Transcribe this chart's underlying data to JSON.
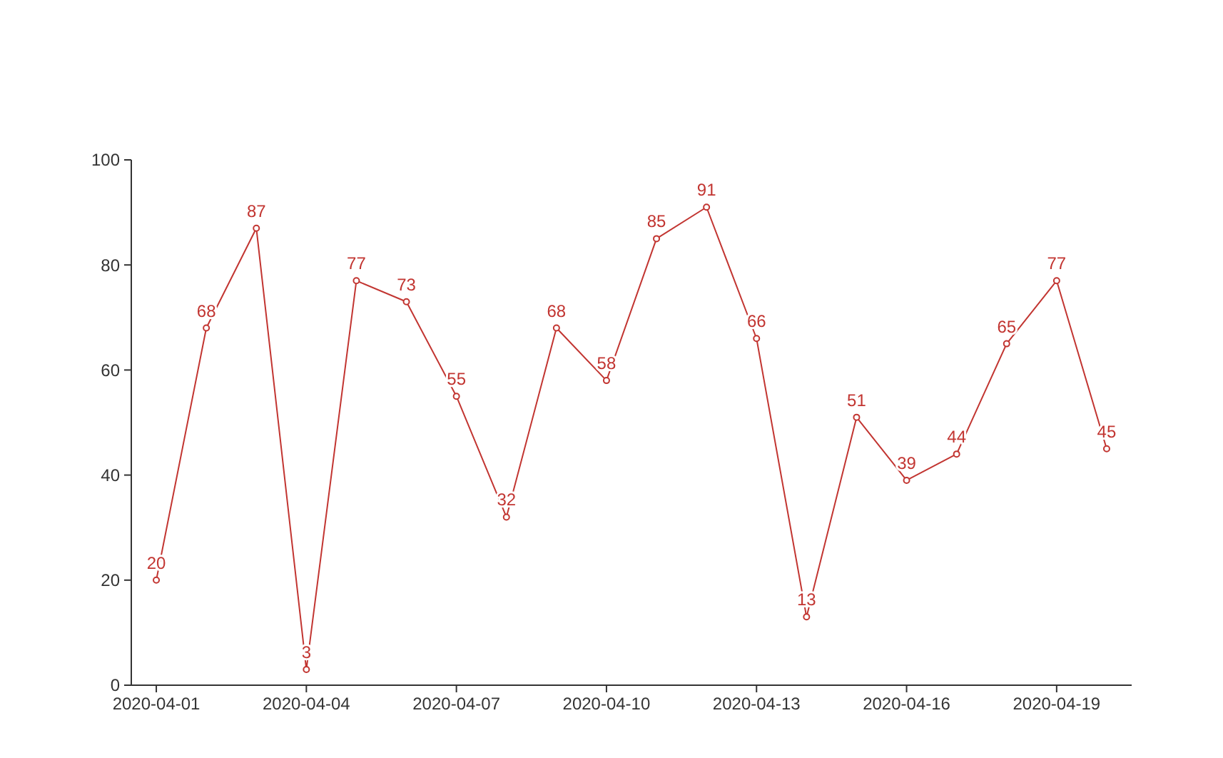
{
  "chart_data": {
    "type": "line",
    "x": [
      "2020-04-01",
      "2020-04-02",
      "2020-04-03",
      "2020-04-04",
      "2020-04-05",
      "2020-04-06",
      "2020-04-07",
      "2020-04-08",
      "2020-04-09",
      "2020-04-10",
      "2020-04-11",
      "2020-04-12",
      "2020-04-13",
      "2020-04-14",
      "2020-04-15",
      "2020-04-16",
      "2020-04-17",
      "2020-04-18",
      "2020-04-19",
      "2020-04-20"
    ],
    "series": [
      {
        "color": "#c23531",
        "values": [
          20,
          68,
          87,
          3,
          77,
          73,
          55,
          32,
          68,
          58,
          85,
          91,
          66,
          13,
          51,
          39,
          44,
          65,
          77,
          45
        ]
      }
    ],
    "xlim": [
      "2020-03-31T12:00",
      "2020-04-20T12:00"
    ],
    "xticks": [
      {
        "value": "2020-04-01",
        "label": "2020-04-01"
      },
      {
        "value": "2020-04-04",
        "label": "2020-04-04"
      },
      {
        "value": "2020-04-07",
        "label": "2020-04-07"
      },
      {
        "value": "2020-04-10",
        "label": "2020-04-10"
      },
      {
        "value": "2020-04-13",
        "label": "2020-04-13"
      },
      {
        "value": "2020-04-16",
        "label": "2020-04-16"
      },
      {
        "value": "2020-04-19",
        "label": "2020-04-19"
      }
    ],
    "ylim": [
      0,
      100
    ],
    "yticks": [
      0,
      20,
      40,
      60,
      80,
      100
    ],
    "data_labels": true,
    "marker": "circle",
    "line_style": "solid"
  }
}
